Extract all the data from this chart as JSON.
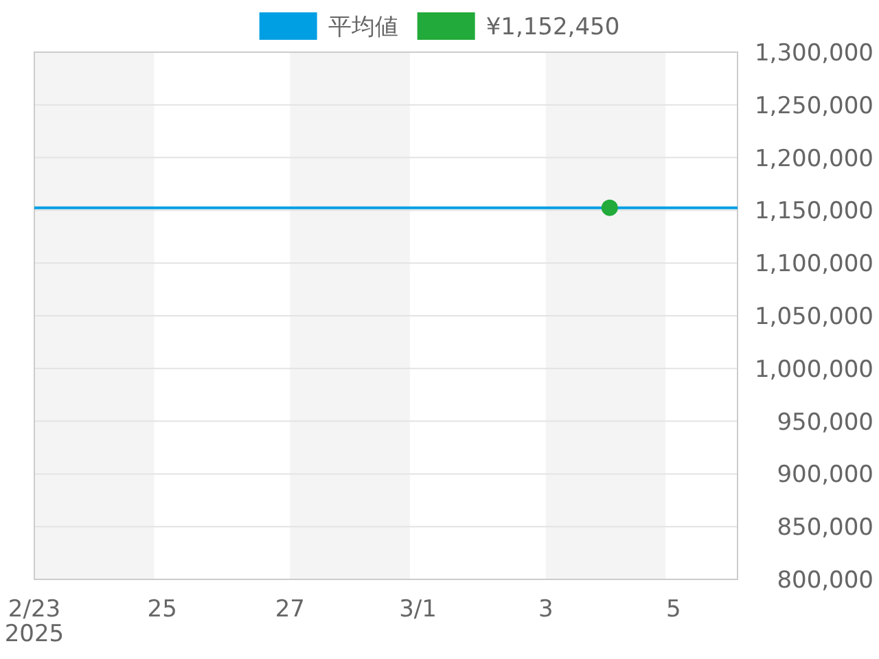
{
  "chart_data": {
    "type": "line",
    "xlim": [
      "2025-02-23",
      "2025-03-06"
    ],
    "xticks": [
      {
        "value": "2025-02-23",
        "label": "2/23\n2025"
      },
      {
        "value": "2025-02-25",
        "label": "25"
      },
      {
        "value": "2025-02-27",
        "label": "27"
      },
      {
        "value": "2025-03-01",
        "label": "3/1"
      },
      {
        "value": "2025-03-03",
        "label": "3"
      },
      {
        "value": "2025-03-05",
        "label": "5"
      }
    ],
    "ylim": [
      800000,
      1300000
    ],
    "yticks": [
      {
        "value": 800000,
        "label": "800,000"
      },
      {
        "value": 850000,
        "label": "850,000"
      },
      {
        "value": 900000,
        "label": "900,000"
      },
      {
        "value": 950000,
        "label": "950,000"
      },
      {
        "value": 1000000,
        "label": "1,000,000"
      },
      {
        "value": 1050000,
        "label": "1,050,000"
      },
      {
        "value": 1100000,
        "label": "1,100,000"
      },
      {
        "value": 1150000,
        "label": "1,150,000"
      },
      {
        "value": 1200000,
        "label": "1,200,000"
      },
      {
        "value": 1250000,
        "label": "1,250,000"
      },
      {
        "value": 1300000,
        "label": "1,300,000"
      }
    ],
    "grid": "y",
    "legend": "top",
    "bands": [
      {
        "axis": "x",
        "from": "2025-02-23",
        "to": "2025-02-24T21:00",
        "color": "#f4f4f4"
      },
      {
        "axis": "x",
        "from": "2025-02-27",
        "to": "2025-02-28T21:00",
        "color": "#f4f4f4"
      },
      {
        "axis": "x",
        "from": "2025-03-03",
        "to": "2025-03-04T21:00",
        "color": "#f4f4f4"
      }
    ],
    "series": [
      {
        "name": "平均値",
        "color": "#009fe3",
        "x": [
          "2025-02-23",
          "2025-03-06"
        ],
        "values": [
          1152450,
          1152450
        ]
      },
      {
        "name": "¥1,152,450",
        "type": "scatter",
        "marker": "circle",
        "color": "#22aa3a",
        "x": [
          "2025-03-04"
        ],
        "values": [
          1152450
        ]
      }
    ]
  }
}
